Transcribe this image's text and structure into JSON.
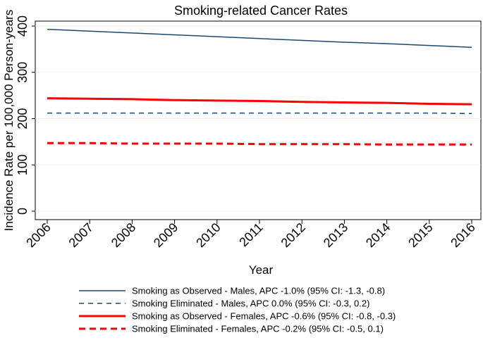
{
  "chart_data": {
    "type": "line",
    "title": "Smoking-related Cancer Rates",
    "xlabel": "Year",
    "ylabel": "Incidence Rate per 100,000 Person-years",
    "x": [
      2006,
      2007,
      2008,
      2009,
      2010,
      2011,
      2012,
      2013,
      2014,
      2015,
      2016
    ],
    "xlim": [
      2006,
      2016
    ],
    "ylim": [
      0,
      400
    ],
    "yticks": [
      0,
      100,
      200,
      300,
      400
    ],
    "grid": "horizontal",
    "legend_position": "bottom",
    "series": [
      {
        "name": "Smoking as Observed - Males, APC -1.0% (95% CI: -1.3, -0.8)",
        "color": "#1a476f",
        "style": "solid",
        "values": [
          393,
          389,
          385,
          381,
          377,
          373,
          369,
          365,
          362,
          358,
          354
        ]
      },
      {
        "name": "Smoking Eliminated - Males, APC 0.0% (95% CI: -0.3, 0.2)",
        "color": "#1a476f",
        "style": "dashed",
        "values": [
          212,
          212,
          212,
          212,
          212,
          212,
          212,
          212,
          212,
          212,
          211
        ]
      },
      {
        "name": "Smoking as Observed - Females, APC -0.6% (95% CI: -0.8, -0.3)",
        "color": "#ff0000",
        "style": "solid",
        "values": [
          244,
          243,
          242,
          240,
          239,
          238,
          236,
          235,
          234,
          232,
          231
        ]
      },
      {
        "name": "Smoking Eliminated - Females, APC -0.2% (95% CI: -0.5, 0.1)",
        "color": "#ff0000",
        "style": "dashed",
        "values": [
          147,
          147,
          146,
          146,
          146,
          145,
          145,
          145,
          144,
          144,
          144
        ]
      }
    ]
  }
}
